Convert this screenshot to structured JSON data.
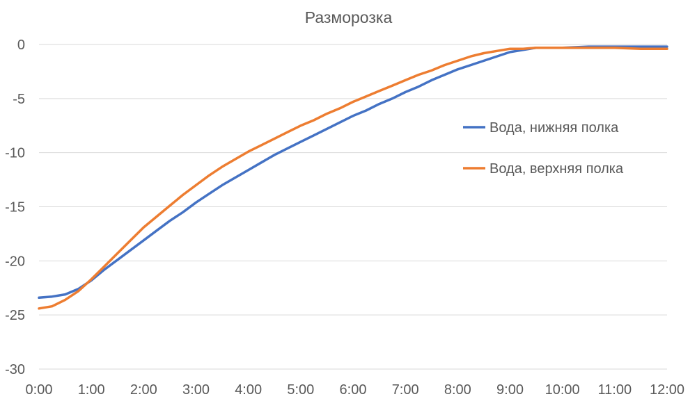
{
  "chart_data": {
    "type": "line",
    "title": "Разморозка",
    "xlabel": "",
    "ylabel": "",
    "x_ticks": [
      "0:00",
      "1:00",
      "2:00",
      "3:00",
      "4:00",
      "5:00",
      "6:00",
      "7:00",
      "8:00",
      "9:00",
      "10:00",
      "11:00",
      "12:00"
    ],
    "y_ticks": [
      0,
      -5,
      -10,
      -15,
      -20,
      -25,
      -30
    ],
    "xlim_hours": [
      0,
      12
    ],
    "ylim": [
      -30,
      0
    ],
    "grid": "horizontal",
    "legend_position": "right",
    "series": [
      {
        "name": "Вода, нижняя полка",
        "color": "#4472C4",
        "x_hours": [
          0,
          0.25,
          0.5,
          0.75,
          1.0,
          1.25,
          1.5,
          1.75,
          2.0,
          2.25,
          2.5,
          2.75,
          3.0,
          3.25,
          3.5,
          3.75,
          4.0,
          4.25,
          4.5,
          4.75,
          5.0,
          5.25,
          5.5,
          5.75,
          6.0,
          6.25,
          6.5,
          6.75,
          7.0,
          7.25,
          7.5,
          7.75,
          8.0,
          8.25,
          8.5,
          8.75,
          9.0,
          9.25,
          9.5,
          9.75,
          10.0,
          10.5,
          11.0,
          11.5,
          12.0
        ],
        "y": [
          -23.4,
          -23.3,
          -23.1,
          -22.6,
          -21.8,
          -20.8,
          -19.9,
          -19.0,
          -18.1,
          -17.2,
          -16.3,
          -15.5,
          -14.6,
          -13.8,
          -13.0,
          -12.3,
          -11.6,
          -10.9,
          -10.2,
          -9.6,
          -9.0,
          -8.4,
          -7.8,
          -7.2,
          -6.6,
          -6.1,
          -5.5,
          -5.0,
          -4.4,
          -3.9,
          -3.3,
          -2.8,
          -2.3,
          -1.9,
          -1.5,
          -1.1,
          -0.7,
          -0.5,
          -0.3,
          -0.3,
          -0.3,
          -0.2,
          -0.2,
          -0.2,
          -0.2
        ]
      },
      {
        "name": "Вода, верхняя полка",
        "color": "#ED7D31",
        "x_hours": [
          0,
          0.25,
          0.5,
          0.75,
          1.0,
          1.25,
          1.5,
          1.75,
          2.0,
          2.25,
          2.5,
          2.75,
          3.0,
          3.25,
          3.5,
          3.75,
          4.0,
          4.25,
          4.5,
          4.75,
          5.0,
          5.25,
          5.5,
          5.75,
          6.0,
          6.25,
          6.5,
          6.75,
          7.0,
          7.25,
          7.5,
          7.75,
          8.0,
          8.25,
          8.5,
          8.75,
          9.0,
          9.25,
          9.5,
          9.75,
          10.0,
          10.5,
          11.0,
          11.5,
          12.0
        ],
        "y": [
          -24.4,
          -24.2,
          -23.6,
          -22.8,
          -21.7,
          -20.5,
          -19.3,
          -18.1,
          -16.9,
          -15.9,
          -14.9,
          -13.9,
          -13.0,
          -12.1,
          -11.3,
          -10.6,
          -9.9,
          -9.3,
          -8.7,
          -8.1,
          -7.5,
          -7.0,
          -6.4,
          -5.9,
          -5.3,
          -4.8,
          -4.3,
          -3.8,
          -3.3,
          -2.8,
          -2.4,
          -1.9,
          -1.5,
          -1.1,
          -0.8,
          -0.6,
          -0.4,
          -0.4,
          -0.3,
          -0.3,
          -0.3,
          -0.3,
          -0.3,
          -0.4,
          -0.4
        ]
      }
    ]
  }
}
